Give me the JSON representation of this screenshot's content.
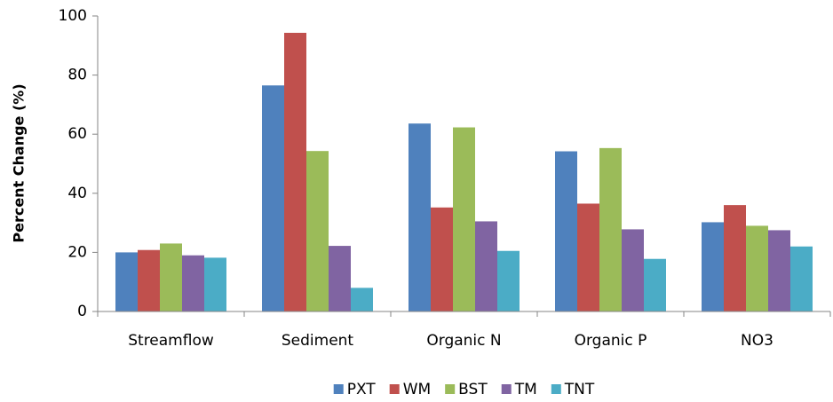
{
  "chart_data": {
    "type": "bar",
    "y_label": "Percent Change (%)",
    "categories": [
      "Streamflow",
      "Sediment",
      "Organic N",
      "Organic P",
      "NO3"
    ],
    "series": [
      {
        "name": "PXT",
        "color": "#4f81bd",
        "values": [
          20,
          76.5,
          63.6,
          54.2,
          30.2
        ]
      },
      {
        "name": "WM",
        "color": "#c0504d",
        "values": [
          20.8,
          94.3,
          35.2,
          36.5,
          36
        ]
      },
      {
        "name": "BST",
        "color": "#9bbb59",
        "values": [
          23,
          54.3,
          62.3,
          55.3,
          29
        ]
      },
      {
        "name": "TM",
        "color": "#8064a2",
        "values": [
          19,
          22.2,
          30.5,
          27.8,
          27.5
        ]
      },
      {
        "name": "TNT",
        "color": "#4bacc6",
        "values": [
          18.2,
          8,
          20.5,
          17.8,
          22
        ]
      }
    ],
    "ylim": [
      0,
      100
    ],
    "yticks": [
      0,
      20,
      40,
      60,
      80,
      100
    ],
    "grid": false,
    "legend": "bottom"
  }
}
